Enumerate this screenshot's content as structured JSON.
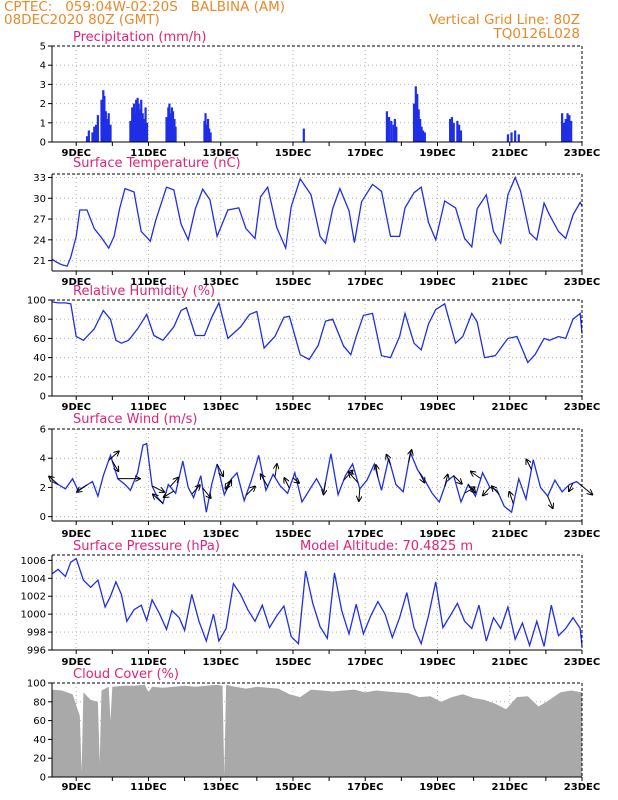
{
  "header": {
    "line1": "CPTEC:   059:04W-02:20S   BALBINA (AM)",
    "line2": "08DEC2020 80Z (GMT)",
    "right1": "Vertical Grid Line: 80Z",
    "right2": "TQ0126L028"
  },
  "colors": {
    "header": "#e8892a",
    "title": "#e0227a",
    "line": "#1f2fe6",
    "bar": "#1f2fe6",
    "cloud": "#a9a9a9",
    "grid": "#b4b4b4"
  },
  "chart_data": [
    {
      "id": "precip",
      "type": "bar",
      "title": "Precipitation (mm/h)",
      "xlabels": [
        "9DEC",
        "11DEC",
        "13DEC",
        "15DEC",
        "17DEC",
        "19DEC",
        "21DEC",
        "23DEC"
      ],
      "x_range_days": [
        8.33,
        23.0
      ],
      "ylim": [
        0,
        5
      ],
      "yticks": [
        0,
        1,
        2,
        3,
        4,
        5
      ],
      "note_values": "sparse bursts of precipitation; x in DEC day numbers, y in mm/h",
      "x": [
        9.3,
        9.35,
        9.45,
        9.5,
        9.55,
        9.6,
        9.7,
        9.75,
        9.78,
        9.82,
        9.85,
        9.9,
        9.95,
        10.5,
        10.55,
        10.6,
        10.63,
        10.66,
        10.7,
        10.73,
        10.76,
        10.8,
        10.84,
        10.88,
        10.92,
        10.96,
        11.5,
        11.55,
        11.58,
        11.62,
        11.65,
        11.68,
        11.72,
        11.75,
        12.55,
        12.58,
        12.62,
        12.65,
        12.68,
        12.72,
        15.3,
        17.6,
        17.66,
        17.72,
        17.78,
        17.82,
        17.86,
        18.35,
        18.4,
        18.44,
        18.48,
        18.52,
        18.56,
        18.6,
        18.65,
        19.35,
        19.4,
        19.45,
        19.55,
        19.6,
        19.65,
        20.95,
        21.05,
        21.15,
        21.25,
        22.45,
        22.5,
        22.55,
        22.6,
        22.65,
        22.7
      ],
      "values": [
        0.3,
        0.6,
        0.5,
        0.8,
        0.9,
        1.4,
        2.2,
        2.7,
        2.4,
        1.6,
        1.2,
        1.5,
        0.9,
        1.1,
        1.8,
        2.0,
        1.5,
        2.2,
        2.3,
        2.0,
        1.7,
        2.2,
        1.5,
        1.2,
        1.8,
        1.0,
        1.3,
        1.8,
        2.0,
        1.5,
        1.8,
        1.6,
        1.2,
        0.8,
        1.1,
        1.5,
        0.9,
        1.2,
        0.7,
        0.5,
        0.7,
        1.6,
        1.3,
        1.1,
        0.9,
        1.2,
        0.8,
        2.0,
        2.9,
        2.5,
        1.7,
        1.2,
        0.8,
        0.6,
        0.5,
        1.2,
        1.3,
        1.0,
        1.1,
        0.9,
        0.6,
        0.4,
        0.5,
        0.6,
        0.4,
        1.5,
        1.0,
        1.2,
        1.5,
        1.4,
        1.1
      ]
    },
    {
      "id": "temp",
      "type": "line",
      "title": "Surface Temperature (nC)",
      "xlabels": [
        "9DEC",
        "11DEC",
        "13DEC",
        "15DEC",
        "17DEC",
        "19DEC",
        "21DEC",
        "23DEC"
      ],
      "x_range_days": [
        8.33,
        23.0
      ],
      "ylim": [
        19.5,
        33.5
      ],
      "yticks": [
        21,
        24,
        27,
        30,
        33
      ],
      "x": [
        8.33,
        8.45,
        8.6,
        8.75,
        8.85,
        9.0,
        9.1,
        9.3,
        9.5,
        9.7,
        9.9,
        10.05,
        10.2,
        10.35,
        10.6,
        10.8,
        11.05,
        11.2,
        11.5,
        11.7,
        11.9,
        12.1,
        12.3,
        12.5,
        12.7,
        12.9,
        13.2,
        13.5,
        13.7,
        13.95,
        14.1,
        14.3,
        14.55,
        14.8,
        14.95,
        15.2,
        15.5,
        15.75,
        15.9,
        16.1,
        16.3,
        16.55,
        16.7,
        16.9,
        17.2,
        17.45,
        17.7,
        17.95,
        18.1,
        18.35,
        18.55,
        18.75,
        18.95,
        19.2,
        19.5,
        19.75,
        19.95,
        20.1,
        20.35,
        20.55,
        20.75,
        20.95,
        21.15,
        21.3,
        21.55,
        21.75,
        21.95,
        22.1,
        22.35,
        22.55,
        22.75,
        22.95,
        23.0
      ],
      "values": [
        21.2,
        20.8,
        20.4,
        20.2,
        21.5,
        24.5,
        28.3,
        28.3,
        25.6,
        24.3,
        22.8,
        24.5,
        28.5,
        31.4,
        30.9,
        25.2,
        23.8,
        26.8,
        31.6,
        31.2,
        26.3,
        24.0,
        28.5,
        31.3,
        29.8,
        24.5,
        28.3,
        28.6,
        25.6,
        24.2,
        30.2,
        31.6,
        25.8,
        22.8,
        28.8,
        32.8,
        30.5,
        24.5,
        23.5,
        28.5,
        31.4,
        28.2,
        23.6,
        29.5,
        32.0,
        31.0,
        24.5,
        24.5,
        28.6,
        30.8,
        31.6,
        26.5,
        24.0,
        29.6,
        28.6,
        24.2,
        23.0,
        28.5,
        30.5,
        25.2,
        23.5,
        30.5,
        33.0,
        31.0,
        25.0,
        24.0,
        29.3,
        27.6,
        25.2,
        24.2,
        27.6,
        29.4,
        28.9
      ]
    },
    {
      "id": "rh",
      "type": "line",
      "title": "Relative Humidity (%)",
      "xlabels": [
        "9DEC",
        "11DEC",
        "13DEC",
        "15DEC",
        "17DEC",
        "19DEC",
        "21DEC",
        "23DEC"
      ],
      "x_range_days": [
        8.33,
        23.0
      ],
      "ylim": [
        0,
        100
      ],
      "yticks": [
        0,
        20,
        40,
        60,
        80,
        100
      ],
      "x": [
        8.33,
        8.5,
        8.7,
        8.85,
        9.0,
        9.2,
        9.5,
        9.75,
        9.95,
        10.1,
        10.25,
        10.45,
        10.7,
        10.95,
        11.15,
        11.4,
        11.7,
        11.9,
        12.05,
        12.3,
        12.55,
        12.75,
        12.95,
        13.2,
        13.55,
        13.8,
        14.0,
        14.2,
        14.5,
        14.75,
        14.9,
        15.2,
        15.45,
        15.7,
        15.9,
        16.1,
        16.4,
        16.6,
        16.75,
        16.95,
        17.2,
        17.45,
        17.7,
        17.95,
        18.1,
        18.35,
        18.55,
        18.75,
        18.95,
        19.2,
        19.5,
        19.7,
        19.95,
        20.1,
        20.3,
        20.6,
        20.85,
        20.95,
        21.2,
        21.5,
        21.7,
        21.95,
        22.1,
        22.35,
        22.55,
        22.75,
        22.95,
        23.0
      ],
      "values": [
        98,
        97,
        97,
        96,
        62,
        58,
        70,
        89,
        80,
        58,
        55,
        58,
        70,
        85,
        63,
        58,
        72,
        89,
        92,
        63,
        63,
        82,
        97,
        60,
        72,
        85,
        88,
        50,
        62,
        82,
        83,
        43,
        38,
        53,
        78,
        80,
        52,
        43,
        62,
        84,
        86,
        42,
        40,
        62,
        86,
        55,
        48,
        75,
        90,
        96,
        55,
        62,
        86,
        77,
        40,
        42,
        55,
        60,
        62,
        35,
        43,
        60,
        58,
        62,
        60,
        80,
        86,
        65
      ]
    },
    {
      "id": "wind",
      "type": "line",
      "title": "Surface Wind (m/s)",
      "xlabels": [
        "9DEC",
        "11DEC",
        "13DEC",
        "15DEC",
        "17DEC",
        "19DEC",
        "21DEC",
        "23DEC"
      ],
      "x_range_days": [
        8.33,
        23.0
      ],
      "ylim": [
        -0.3,
        6.0
      ],
      "yticks": [
        0,
        2,
        4,
        6
      ],
      "x": [
        8.33,
        8.5,
        8.7,
        8.9,
        9.05,
        9.25,
        9.45,
        9.6,
        9.75,
        9.95,
        10.15,
        10.35,
        10.5,
        10.7,
        10.85,
        10.95,
        11.1,
        11.25,
        11.4,
        11.55,
        11.75,
        11.95,
        12.1,
        12.25,
        12.45,
        12.6,
        12.75,
        12.9,
        13.1,
        13.3,
        13.45,
        13.65,
        13.85,
        14.05,
        14.25,
        14.45,
        14.65,
        14.85,
        15.05,
        15.25,
        15.45,
        15.65,
        15.85,
        16.05,
        16.25,
        16.45,
        16.65,
        16.85,
        17.05,
        17.25,
        17.45,
        17.65,
        17.85,
        18.05,
        18.25,
        18.45,
        18.65,
        18.85,
        19.05,
        19.25,
        19.45,
        19.65,
        19.85,
        20.05,
        20.25,
        20.45,
        20.65,
        20.85,
        21.05,
        21.25,
        21.45,
        21.65,
        21.85,
        22.05,
        22.25,
        22.45,
        22.65,
        22.85,
        23.0
      ],
      "values": [
        2.4,
        2.2,
        1.9,
        2.6,
        1.8,
        2.1,
        2.4,
        1.4,
        2.8,
        4.2,
        2.6,
        2.2,
        1.8,
        3.0,
        4.9,
        5.0,
        2.1,
        1.3,
        0.9,
        2.2,
        1.6,
        3.8,
        2.0,
        1.3,
        2.8,
        0.3,
        2.2,
        3.6,
        1.5,
        2.6,
        3.0,
        1.1,
        2.5,
        4.2,
        1.8,
        2.9,
        2.1,
        1.6,
        3.0,
        1.0,
        1.8,
        2.6,
        1.7,
        4.3,
        1.5,
        2.8,
        3.6,
        1.9,
        2.5,
        3.6,
        1.8,
        4.0,
        2.2,
        1.7,
        4.4,
        3.2,
        2.5,
        1.6,
        1.0,
        2.4,
        2.8,
        1.0,
        2.2,
        1.4,
        3.0,
        2.0,
        1.8,
        0.7,
        0.3,
        2.6,
        1.2,
        3.9,
        2.0,
        1.4,
        2.5,
        1.7,
        2.2,
        2.4,
        2.1
      ],
      "arrows": [
        {
          "x": 8.5,
          "dx": -9,
          "dy": -8
        },
        {
          "x": 9.3,
          "dx": -10,
          "dy": 7
        },
        {
          "x": 9.9,
          "dx": 10,
          "dy": -9
        },
        {
          "x": 10.0,
          "dx": 6,
          "dy": 10
        },
        {
          "x": 10.15,
          "dx": 22,
          "dy": 0
        },
        {
          "x": 11.1,
          "dx": 12,
          "dy": 6
        },
        {
          "x": 11.4,
          "dx": -10,
          "dy": -9
        },
        {
          "x": 11.6,
          "dx": 8,
          "dy": -9
        },
        {
          "x": 11.7,
          "dx": -10,
          "dy": 6
        },
        {
          "x": 12.2,
          "dx": 8,
          "dy": -9
        },
        {
          "x": 12.5,
          "dx": 8,
          "dy": 10
        },
        {
          "x": 12.9,
          "dx": 6,
          "dy": 12
        },
        {
          "x": 13.15,
          "dx": 5,
          "dy": -10
        },
        {
          "x": 13.3,
          "dx": -6,
          "dy": 10
        },
        {
          "x": 13.7,
          "dx": 9,
          "dy": -9
        },
        {
          "x": 14.3,
          "dx": -7,
          "dy": -12
        },
        {
          "x": 14.5,
          "dx": 2,
          "dy": -13
        },
        {
          "x": 14.9,
          "dx": -5,
          "dy": -10
        },
        {
          "x": 15.0,
          "dx": 6,
          "dy": 5
        },
        {
          "x": 15.9,
          "dx": -2,
          "dy": 12
        },
        {
          "x": 16.4,
          "dx": 9,
          "dy": -10
        },
        {
          "x": 16.8,
          "dx": -9,
          "dy": -10
        },
        {
          "x": 16.85,
          "dx": -1,
          "dy": 12
        },
        {
          "x": 17.35,
          "dx": -2,
          "dy": -12
        },
        {
          "x": 17.7,
          "dx": -4,
          "dy": -10
        },
        {
          "x": 18.2,
          "dx": 3,
          "dy": -12
        },
        {
          "x": 18.5,
          "dx": 5,
          "dy": 10
        },
        {
          "x": 19.2,
          "dx": 3,
          "dy": -12
        },
        {
          "x": 19.45,
          "dx": 8,
          "dy": 8
        },
        {
          "x": 19.75,
          "dx": 10,
          "dy": -6
        },
        {
          "x": 19.85,
          "dx": 7,
          "dy": 8
        },
        {
          "x": 20.2,
          "dx": -10,
          "dy": -7
        },
        {
          "x": 20.45,
          "dx": -7,
          "dy": 8
        },
        {
          "x": 20.7,
          "dx": -7,
          "dy": -8
        },
        {
          "x": 21.1,
          "dx": -4,
          "dy": -12
        },
        {
          "x": 21.6,
          "dx": -5,
          "dy": -10
        },
        {
          "x": 22.05,
          "dx": 5,
          "dy": 12
        },
        {
          "x": 22.75,
          "dx": -4,
          "dy": 8
        },
        {
          "x": 22.95,
          "dx": 12,
          "dy": 10
        }
      ]
    },
    {
      "id": "press",
      "type": "line",
      "title": "Surface Pressure (hPa)",
      "annotation": "Model Altitude: 70.4825 m",
      "xlabels": [
        "9DEC",
        "11DEC",
        "13DEC",
        "15DEC",
        "17DEC",
        "19DEC",
        "21DEC",
        "23DEC"
      ],
      "x_range_days": [
        8.33,
        23.0
      ],
      "ylim": [
        996,
        1006.6
      ],
      "yticks": [
        996,
        998,
        1000,
        1002,
        1004,
        1006
      ],
      "x": [
        8.33,
        8.5,
        8.7,
        8.85,
        9.0,
        9.2,
        9.4,
        9.6,
        9.8,
        9.95,
        10.1,
        10.25,
        10.4,
        10.6,
        10.8,
        10.95,
        11.1,
        11.3,
        11.5,
        11.65,
        11.85,
        12.0,
        12.2,
        12.4,
        12.6,
        12.8,
        12.95,
        13.15,
        13.35,
        13.55,
        13.75,
        13.95,
        14.15,
        14.35,
        14.55,
        14.75,
        14.95,
        15.15,
        15.35,
        15.55,
        15.75,
        15.95,
        16.15,
        16.35,
        16.55,
        16.75,
        16.95,
        17.15,
        17.35,
        17.55,
        17.75,
        17.95,
        18.15,
        18.35,
        18.55,
        18.75,
        18.95,
        19.15,
        19.35,
        19.55,
        19.75,
        19.95,
        20.15,
        20.35,
        20.55,
        20.75,
        20.95,
        21.15,
        21.35,
        21.55,
        21.75,
        21.95,
        22.15,
        22.35,
        22.55,
        22.75,
        22.95,
        23.0
      ],
      "values": [
        1004.5,
        1005.0,
        1004.2,
        1005.8,
        1006.2,
        1003.8,
        1003.0,
        1003.8,
        1000.8,
        1002.0,
        1003.6,
        1002.2,
        999.2,
        1000.5,
        1001.0,
        999.3,
        1001.6,
        1000.1,
        998.3,
        1000.4,
        999.6,
        998.2,
        1002.2,
        999.2,
        997.0,
        1000.0,
        997.0,
        998.4,
        1003.4,
        1002.2,
        1000.5,
        999.2,
        1001.0,
        998.5,
        999.8,
        1000.9,
        997.5,
        996.7,
        1004.8,
        1001.2,
        998.6,
        997.3,
        1004.6,
        1000.4,
        997.8,
        1001.1,
        997.8,
        999.8,
        1001.4,
        1000.0,
        997.4,
        999.6,
        1002.4,
        998.5,
        996.7,
        999.8,
        1003.6,
        998.5,
        999.8,
        1001.2,
        999.2,
        998.4,
        1001.0,
        997.0,
        999.6,
        998.4,
        1000.8,
        997.2,
        999.0,
        996.5,
        999.2,
        996.4,
        1001.0,
        997.6,
        998.4,
        999.6,
        998.4,
        996.4
      ]
    },
    {
      "id": "cloud",
      "type": "area",
      "title": "Cloud Cover (%)",
      "xlabels": [
        "9DEC",
        "11DEC",
        "13DEC",
        "15DEC",
        "17DEC",
        "19DEC",
        "21DEC",
        "23DEC"
      ],
      "x_range_days": [
        8.33,
        23.0
      ],
      "ylim": [
        0,
        100
      ],
      "yticks": [
        0,
        20,
        40,
        60,
        80,
        100
      ],
      "x": [
        8.33,
        8.6,
        8.9,
        9.1,
        9.15,
        9.2,
        9.4,
        9.6,
        9.65,
        9.7,
        9.9,
        9.95,
        10.0,
        10.3,
        10.6,
        10.9,
        11.0,
        11.1,
        11.4,
        11.7,
        12.0,
        12.3,
        12.6,
        12.9,
        13.05,
        13.1,
        13.15,
        13.4,
        13.7,
        14.0,
        14.3,
        14.6,
        14.9,
        15.2,
        15.5,
        15.8,
        16.1,
        16.4,
        16.7,
        17.0,
        17.3,
        17.6,
        17.9,
        18.2,
        18.5,
        18.8,
        19.1,
        19.4,
        19.7,
        20.0,
        20.3,
        20.6,
        20.9,
        21.2,
        21.5,
        21.8,
        22.1,
        22.4,
        22.7,
        23.0
      ],
      "values": [
        93,
        92,
        88,
        65,
        5,
        90,
        82,
        80,
        15,
        92,
        96,
        60,
        96,
        97,
        97,
        98,
        90,
        96,
        95,
        96,
        97,
        96,
        97,
        98,
        97,
        2,
        98,
        96,
        94,
        96,
        95,
        94,
        88,
        85,
        93,
        92,
        91,
        92,
        93,
        90,
        92,
        91,
        90,
        89,
        85,
        86,
        80,
        85,
        88,
        84,
        82,
        78,
        72,
        85,
        86,
        75,
        82,
        90,
        92,
        90
      ]
    }
  ]
}
